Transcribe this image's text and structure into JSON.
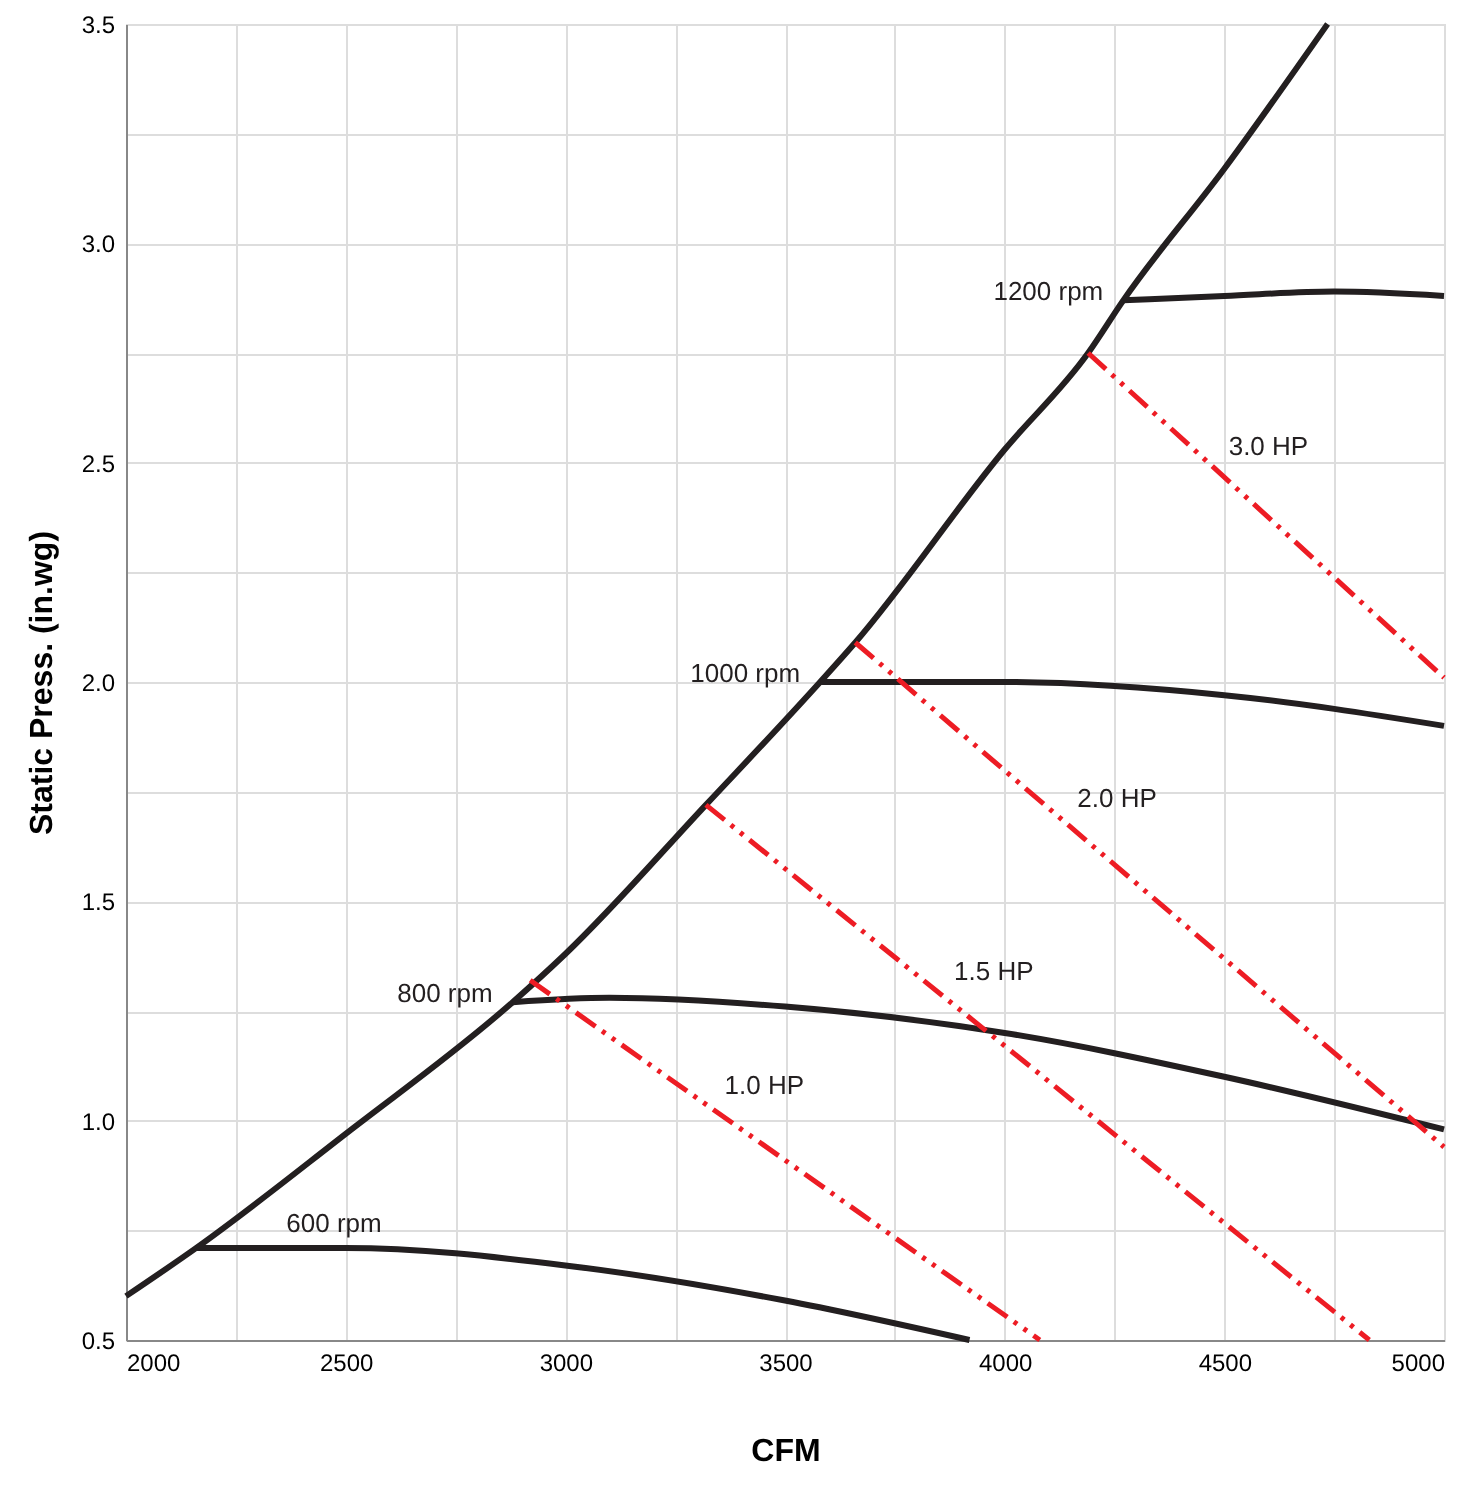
{
  "chart_data": {
    "type": "line",
    "xlabel": "CFM",
    "ylabel": "Static Press.  (in.wg)",
    "xlim": [
      2000,
      5000
    ],
    "ylim": [
      0.5,
      3.5
    ],
    "xticks": [
      2000,
      {
        "value": 2250,
        "label": null
      },
      2500,
      {
        "value": 2750,
        "label": null
      },
      3000,
      {
        "value": 3250,
        "label": null
      },
      3500,
      {
        "value": 3750,
        "label": null
      },
      4000,
      {
        "value": 4250,
        "label": null
      },
      4500,
      {
        "value": 4750,
        "label": null
      },
      5000
    ],
    "yticks": [
      {
        "value": 0.5,
        "label": "0.5"
      },
      {
        "value": 0.75,
        "label": null
      },
      {
        "value": 1,
        "label": "1.0"
      },
      {
        "value": 1.25,
        "label": null
      },
      {
        "value": 1.5,
        "label": "1.5"
      },
      {
        "value": 1.75,
        "label": null
      },
      {
        "value": 2,
        "label": "2.0"
      },
      {
        "value": 2.25,
        "label": null
      },
      {
        "value": 2.5,
        "label": "2.5"
      },
      {
        "value": 2.75,
        "label": null
      },
      {
        "value": 3,
        "label": "3.0"
      },
      {
        "value": 3.25,
        "label": null
      },
      {
        "value": 3.5,
        "label": "3.5"
      }
    ],
    "grid": true,
    "marker": "none",
    "series": [
      {
        "color": "#231f20",
        "line_style": "solid",
        "x": [
          2000,
          2160,
          2500,
          2880,
          3000,
          3320,
          3580,
          3660,
          4000,
          4190,
          4270,
          4500,
          4735
        ],
        "values": [
          0.6,
          0.71,
          0.97,
          1.27,
          1.38,
          1.72,
          2.0,
          2.09,
          2.53,
          2.75,
          2.87,
          3.17,
          3.5
        ]
      },
      {
        "name": "600 rpm",
        "color": "#231f20",
        "line_style": "solid",
        "x": [
          2160,
          2500,
          3000,
          3500,
          3920
        ],
        "values": [
          0.71,
          0.71,
          0.67,
          0.59,
          0.5
        ]
      },
      {
        "name": "800 rpm",
        "color": "#231f20",
        "line_style": "solid",
        "x": [
          2880,
          3100,
          3500,
          4000,
          4500,
          5000
        ],
        "values": [
          1.27,
          1.28,
          1.26,
          1.2,
          1.1,
          0.98
        ]
      },
      {
        "name": "1000 rpm",
        "color": "#231f20",
        "line_style": "solid",
        "x": [
          3580,
          4000,
          4500,
          5000
        ],
        "values": [
          2.0,
          2.0,
          1.97,
          1.9
        ]
      },
      {
        "name": "1200 rpm",
        "color": "#231f20",
        "line_style": "solid",
        "x": [
          4270,
          4500,
          4750,
          5000
        ],
        "values": [
          2.87,
          2.88,
          2.89,
          2.88
        ]
      },
      {
        "name": "1.0 HP",
        "color": "#ed1c24",
        "line_style": "dashed",
        "x": [
          2920,
          4080
        ],
        "values": [
          1.32,
          0.5
        ]
      },
      {
        "name": "1.5 HP",
        "color": "#ed1c24",
        "line_style": "dashed",
        "x": [
          3320,
          4830
        ],
        "values": [
          1.72,
          0.5
        ]
      },
      {
        "name": "2.0 HP",
        "color": "#ed1c24",
        "line_style": "dashed",
        "x": [
          3660,
          5000
        ],
        "values": [
          2.09,
          0.94
        ]
      },
      {
        "name": "3.0 HP",
        "color": "#ed1c24",
        "line_style": "dashed",
        "x": [
          4190,
          5000
        ],
        "values": [
          2.75,
          2.01
        ]
      }
    ]
  }
}
